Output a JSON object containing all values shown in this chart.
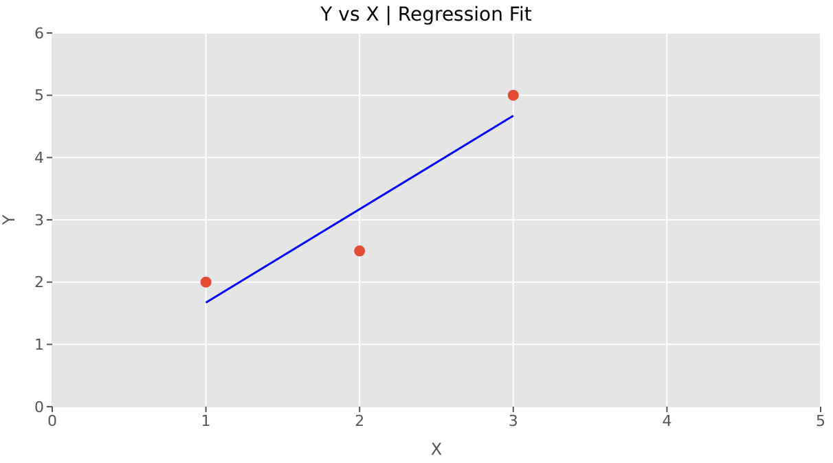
{
  "chart_data": {
    "type": "scatter",
    "title": "Y vs X | Regression Fit",
    "xlabel": "X",
    "ylabel": "Y",
    "series": [
      {
        "color": "#e24a33",
        "x": [
          1,
          2,
          3
        ],
        "values": [
          2,
          2.5,
          5
        ],
        "marker": "circle"
      },
      {
        "type": "line",
        "color": "#0000ff",
        "x": [
          1,
          3
        ],
        "values": [
          1.67,
          4.67
        ],
        "marker": "none",
        "line_style": "solid"
      }
    ],
    "xlim": [
      0,
      5
    ],
    "xticks": [
      0,
      1,
      2,
      3,
      4,
      5
    ],
    "ylim": [
      0,
      6
    ],
    "yticks": [
      0,
      1,
      2,
      3,
      4,
      5,
      6
    ],
    "grid": true
  }
}
